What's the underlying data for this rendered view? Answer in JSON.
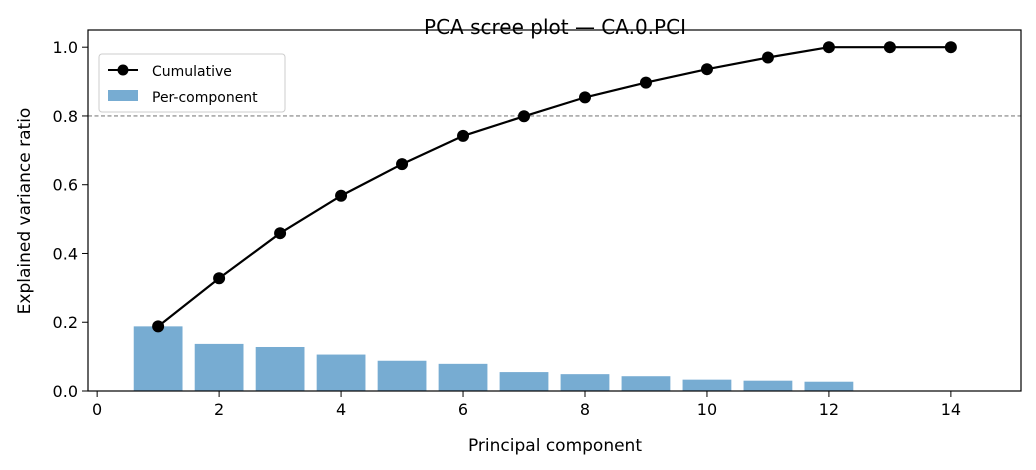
{
  "chart_data": {
    "type": "bar+line",
    "title": "PCA scree plot — CA.0.PCI",
    "xlabel": "Principal component",
    "ylabel": "Explained variance ratio",
    "xlim": [
      -0.15,
      15.15
    ],
    "ylim": [
      0,
      1.05
    ],
    "xticks": [
      0,
      2,
      4,
      6,
      8,
      10,
      12,
      14
    ],
    "yticks": [
      0.0,
      0.2,
      0.4,
      0.6,
      0.8,
      1.0
    ],
    "ytick_labels": [
      "0.0",
      "0.2",
      "0.4",
      "0.6",
      "0.8",
      "1.0"
    ],
    "grid": false,
    "legend_position": "top-left",
    "threshold": {
      "y": 0.8,
      "style": "dashed",
      "color": "#808080"
    },
    "x": [
      1,
      2,
      3,
      4,
      5,
      6,
      7,
      8,
      9,
      10,
      11,
      12,
      13,
      14
    ],
    "series": [
      {
        "name": "Cumulative",
        "type": "line",
        "color": "#000000",
        "values": [
          0.188,
          0.328,
          0.459,
          0.568,
          0.66,
          0.742,
          0.799,
          0.854,
          0.897,
          0.936,
          0.97,
          1.0,
          1.0,
          1.0
        ]
      },
      {
        "name": "Per-component",
        "type": "bar",
        "color": "#77acd2",
        "values": [
          0.188,
          0.137,
          0.128,
          0.106,
          0.088,
          0.079,
          0.055,
          0.049,
          0.043,
          0.033,
          0.03,
          0.027,
          0.0,
          0.0
        ]
      }
    ]
  }
}
